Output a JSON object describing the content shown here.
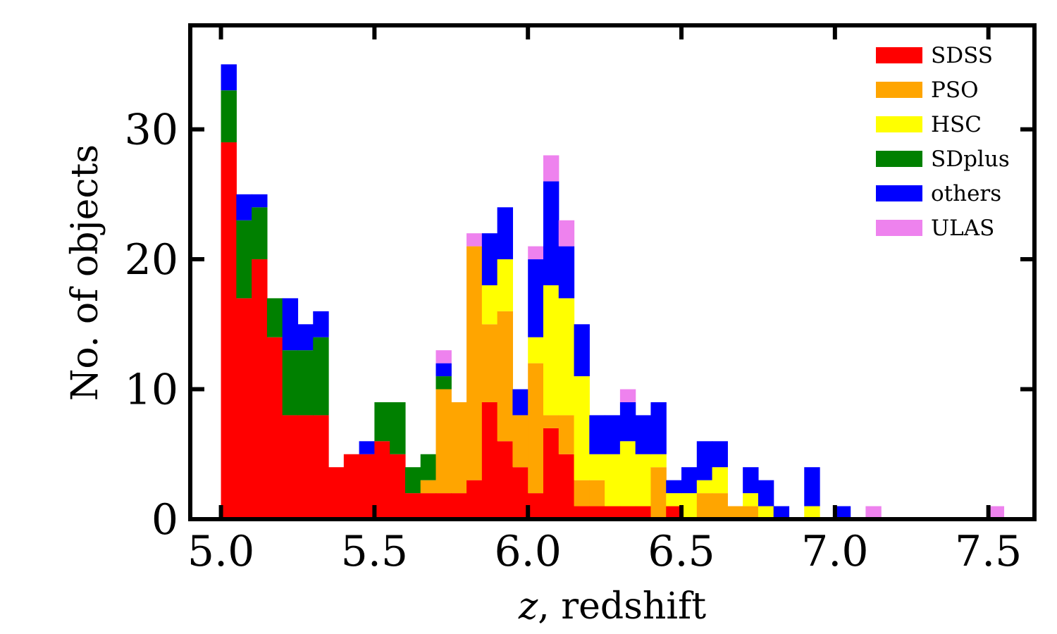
{
  "chart_data": {
    "type": "bar",
    "stacked": true,
    "bin_width": 0.05,
    "x_bin_starts": [
      5.0,
      5.05,
      5.1,
      5.15,
      5.2,
      5.25,
      5.3,
      5.35,
      5.4,
      5.45,
      5.5,
      5.55,
      5.6,
      5.65,
      5.7,
      5.75,
      5.8,
      5.85,
      5.9,
      5.95,
      6.0,
      6.05,
      6.1,
      6.15,
      6.2,
      6.25,
      6.3,
      6.35,
      6.4,
      6.45,
      6.5,
      6.55,
      6.6,
      6.65,
      6.7,
      6.75,
      6.8,
      6.85,
      6.9,
      6.95,
      7.0,
      7.05,
      7.1,
      7.15,
      7.2,
      7.25,
      7.3,
      7.35,
      7.4,
      7.45,
      7.5
    ],
    "series": [
      {
        "name": "SDSS",
        "color": "#ff0000",
        "values": [
          29,
          17,
          20,
          14,
          8,
          8,
          8,
          4,
          5,
          5,
          6,
          5,
          2,
          2,
          2,
          2,
          3,
          9,
          6,
          4,
          2,
          7,
          5,
          1,
          1,
          1,
          1,
          1,
          0,
          1,
          0,
          0,
          0,
          0,
          0,
          0,
          0,
          0,
          0,
          0,
          0,
          0,
          0,
          0,
          0,
          0,
          0,
          0,
          0,
          0,
          0
        ]
      },
      {
        "name": "PSO",
        "color": "#ffa500",
        "values": [
          0,
          0,
          0,
          0,
          0,
          0,
          0,
          0,
          0,
          0,
          0,
          0,
          0,
          1,
          8,
          7,
          18,
          6,
          10,
          4,
          10,
          1,
          3,
          2,
          2,
          0,
          0,
          0,
          4,
          0,
          0,
          2,
          2,
          1,
          1,
          0,
          0,
          0,
          0,
          0,
          0,
          0,
          0,
          0,
          0,
          0,
          0,
          0,
          0,
          0,
          0
        ]
      },
      {
        "name": "HSC",
        "color": "#ffff00",
        "values": [
          0,
          0,
          0,
          0,
          0,
          0,
          0,
          0,
          0,
          0,
          0,
          0,
          0,
          0,
          0,
          0,
          0,
          3,
          4,
          0,
          2,
          10,
          9,
          8,
          2,
          4,
          5,
          4,
          1,
          1,
          2,
          1,
          2,
          0,
          1,
          1,
          0,
          0,
          1,
          0,
          0,
          0,
          0,
          0,
          0,
          0,
          0,
          0,
          0,
          0,
          0
        ]
      },
      {
        "name": "SDplus",
        "color": "#008000",
        "values": [
          4,
          6,
          4,
          3,
          5,
          5,
          6,
          0,
          0,
          0,
          3,
          4,
          2,
          2,
          1,
          0,
          0,
          0,
          0,
          0,
          0,
          0,
          0,
          0,
          0,
          0,
          0,
          0,
          0,
          0,
          0,
          0,
          0,
          0,
          0,
          0,
          0,
          0,
          0,
          0,
          0,
          0,
          0,
          0,
          0,
          0,
          0,
          0,
          0,
          0,
          0
        ]
      },
      {
        "name": "others",
        "color": "#0000ff",
        "values": [
          2,
          2,
          1,
          0,
          4,
          2,
          2,
          0,
          0,
          1,
          0,
          0,
          0,
          0,
          1,
          0,
          0,
          4,
          4,
          2,
          6,
          8,
          4,
          4,
          3,
          3,
          3,
          3,
          4,
          1,
          2,
          3,
          2,
          0,
          2,
          2,
          1,
          0,
          3,
          0,
          1,
          0,
          0,
          0,
          0,
          0,
          0,
          0,
          0,
          0,
          0
        ]
      },
      {
        "name": "ULAS",
        "color": "#ee82ee",
        "values": [
          0,
          0,
          0,
          0,
          0,
          0,
          0,
          0,
          0,
          0,
          0,
          0,
          0,
          0,
          1,
          0,
          1,
          0,
          0,
          0,
          1,
          2,
          2,
          0,
          0,
          0,
          1,
          0,
          0,
          0,
          0,
          0,
          0,
          0,
          0,
          0,
          0,
          0,
          0,
          0,
          0,
          0,
          1,
          0,
          0,
          0,
          0,
          0,
          0,
          0,
          1
        ]
      }
    ],
    "title": "",
    "xlabel": "z, redshift",
    "xlabel_italic_part": "z",
    "xlabel_rest": ", redshift",
    "ylabel": "No. of objects",
    "xlim": [
      4.9,
      7.65
    ],
    "ylim": [
      0,
      38
    ],
    "xticks": [
      5.0,
      5.5,
      6.0,
      6.5,
      7.0,
      7.5
    ],
    "xtick_labels": [
      "5.0",
      "5.5",
      "6.0",
      "6.5",
      "7.0",
      "7.5"
    ],
    "yticks": [
      0,
      10,
      20,
      30
    ],
    "ytick_labels": [
      "0",
      "10",
      "20",
      "30"
    ],
    "grid": false,
    "legend_position": "top-right"
  }
}
